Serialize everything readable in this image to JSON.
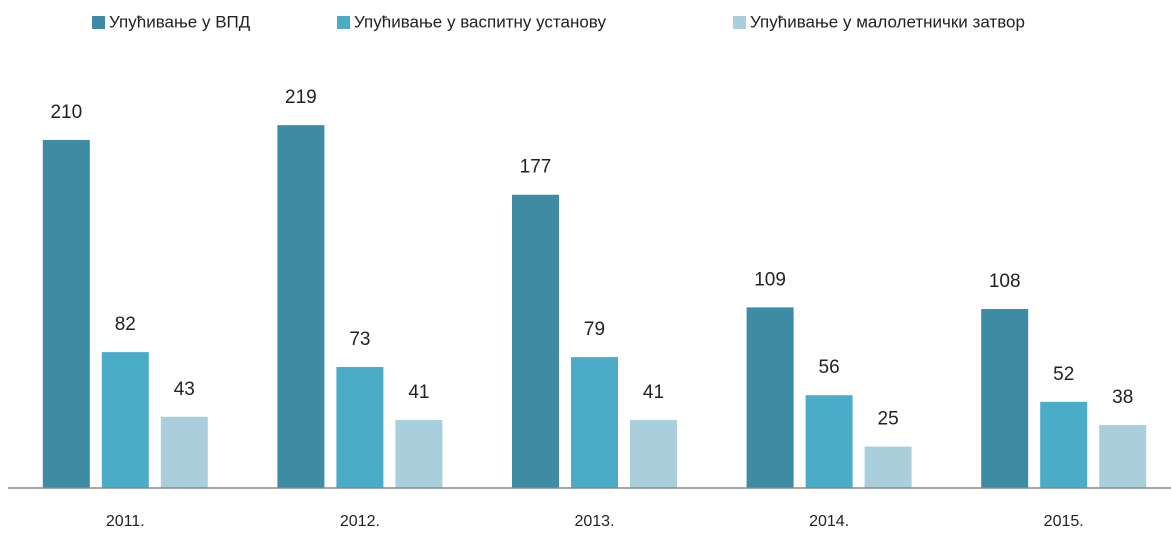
{
  "chart_data": {
    "type": "bar",
    "categories": [
      "2011.",
      "2012.",
      "2013.",
      "2014.",
      "2015."
    ],
    "series": [
      {
        "name": "Упућивање у ВПД",
        "color": "#3d8ca3",
        "values": [
          210,
          219,
          177,
          109,
          108
        ]
      },
      {
        "name": "Упућивање у васпитну установу",
        "color": "#4aacc6",
        "values": [
          82,
          73,
          79,
          56,
          52
        ]
      },
      {
        "name": "Упућивање у малолетнички затвор",
        "color": "#a9cfdc",
        "values": [
          43,
          41,
          41,
          25,
          38
        ]
      }
    ],
    "ylim": [
      0,
      250
    ],
    "legend": "top"
  }
}
